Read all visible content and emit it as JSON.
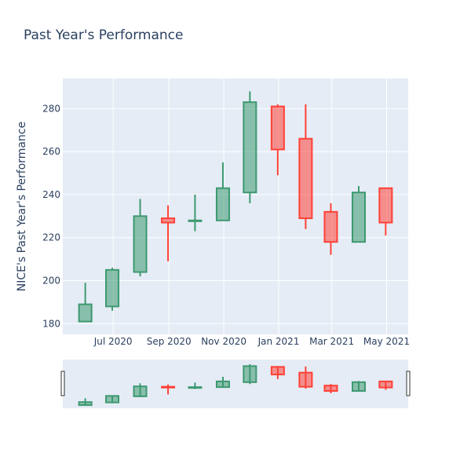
{
  "chart_data": {
    "type": "candlestick",
    "title": "Past Year's Performance",
    "xlabel": "",
    "ylabel": "NICE's Past Year's Performance",
    "ylim": [
      175,
      294
    ],
    "yticks": [
      180,
      200,
      220,
      240,
      260,
      280
    ],
    "xrange": [
      "2020-05-06",
      "2021-05-25"
    ],
    "xticks": [
      {
        "date": "2020-07-01",
        "label": "Jul 2020"
      },
      {
        "date": "2020-09-01",
        "label": "Sep 2020"
      },
      {
        "date": "2020-11-01",
        "label": "Nov 2020"
      },
      {
        "date": "2021-01-01",
        "label": "Jan 2021"
      },
      {
        "date": "2021-03-01",
        "label": "Mar 2021"
      },
      {
        "date": "2021-05-01",
        "label": "May 2021"
      }
    ],
    "grid": true,
    "rangeslider": true,
    "increasing_color": "#3d9970",
    "decreasing_color": "#ff4136",
    "plot_background": "#e5ecf6",
    "candles": [
      {
        "date": "2020-05-31",
        "open": 181,
        "high": 199,
        "low": 181,
        "close": 189
      },
      {
        "date": "2020-06-30",
        "open": 188,
        "high": 206,
        "low": 186,
        "close": 205
      },
      {
        "date": "2020-07-31",
        "open": 204,
        "high": 238,
        "low": 202,
        "close": 230
      },
      {
        "date": "2020-08-31",
        "open": 229,
        "high": 235,
        "low": 209,
        "close": 227
      },
      {
        "date": "2020-09-30",
        "open": 228,
        "high": 240,
        "low": 223,
        "close": 228
      },
      {
        "date": "2020-10-31",
        "open": 228,
        "high": 255,
        "low": 228,
        "close": 243
      },
      {
        "date": "2020-11-30",
        "open": 241,
        "high": 288,
        "low": 236,
        "close": 283
      },
      {
        "date": "2020-12-31",
        "open": 281,
        "high": 282,
        "low": 249,
        "close": 261
      },
      {
        "date": "2021-01-31",
        "open": 266,
        "high": 282,
        "low": 224,
        "close": 229
      },
      {
        "date": "2021-02-28",
        "open": 232,
        "high": 236,
        "low": 212,
        "close": 218
      },
      {
        "date": "2021-03-31",
        "open": 218,
        "high": 244,
        "low": 218,
        "close": 241
      },
      {
        "date": "2021-04-30",
        "open": 243,
        "high": 243,
        "low": 221,
        "close": 227
      }
    ]
  }
}
